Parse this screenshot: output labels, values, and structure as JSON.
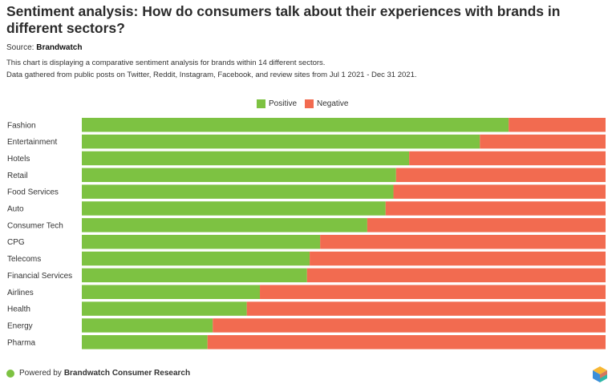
{
  "header": {
    "title": "Sentiment analysis: How do consumers talk about their experiences with brands in different sectors?",
    "source_label": "Source:",
    "source_name": "Brandwatch",
    "description_1": "This chart is displaying a comparative sentiment analysis for brands within 14 different sectors.",
    "description_2": "Data gathered from public posts on Twitter, Reddit, Instagram, Facebook, and review sites from Jul 1 2021 - Dec 31 2021."
  },
  "footer": {
    "prefix": "Powered by",
    "brand": "Brandwatch Consumer Research"
  },
  "colors": {
    "positive": "#7dc242",
    "negative": "#f26b50"
  },
  "chart_data": {
    "type": "bar",
    "orientation": "horizontal",
    "stacked": true,
    "normalized": true,
    "legend_position": "top-center",
    "categories": [
      "Fashion",
      "Entertainment",
      "Hotels",
      "Retail",
      "Food Services",
      "Auto",
      "Consumer Tech",
      "CPG",
      "Telecoms",
      "Financial Services",
      "Airlines",
      "Health",
      "Energy",
      "Pharma"
    ],
    "series": [
      {
        "name": "Positive",
        "values": [
          81.5,
          76,
          62.5,
          60,
          59.5,
          58,
          54.5,
          45.5,
          43.5,
          43,
          34,
          31.5,
          25,
          24
        ]
      },
      {
        "name": "Negative",
        "values": [
          18.5,
          24,
          37.5,
          40,
          40.5,
          42,
          45.5,
          54.5,
          56.5,
          57,
          66,
          68.5,
          75,
          76
        ]
      }
    ],
    "xlim": [
      0,
      100
    ]
  }
}
